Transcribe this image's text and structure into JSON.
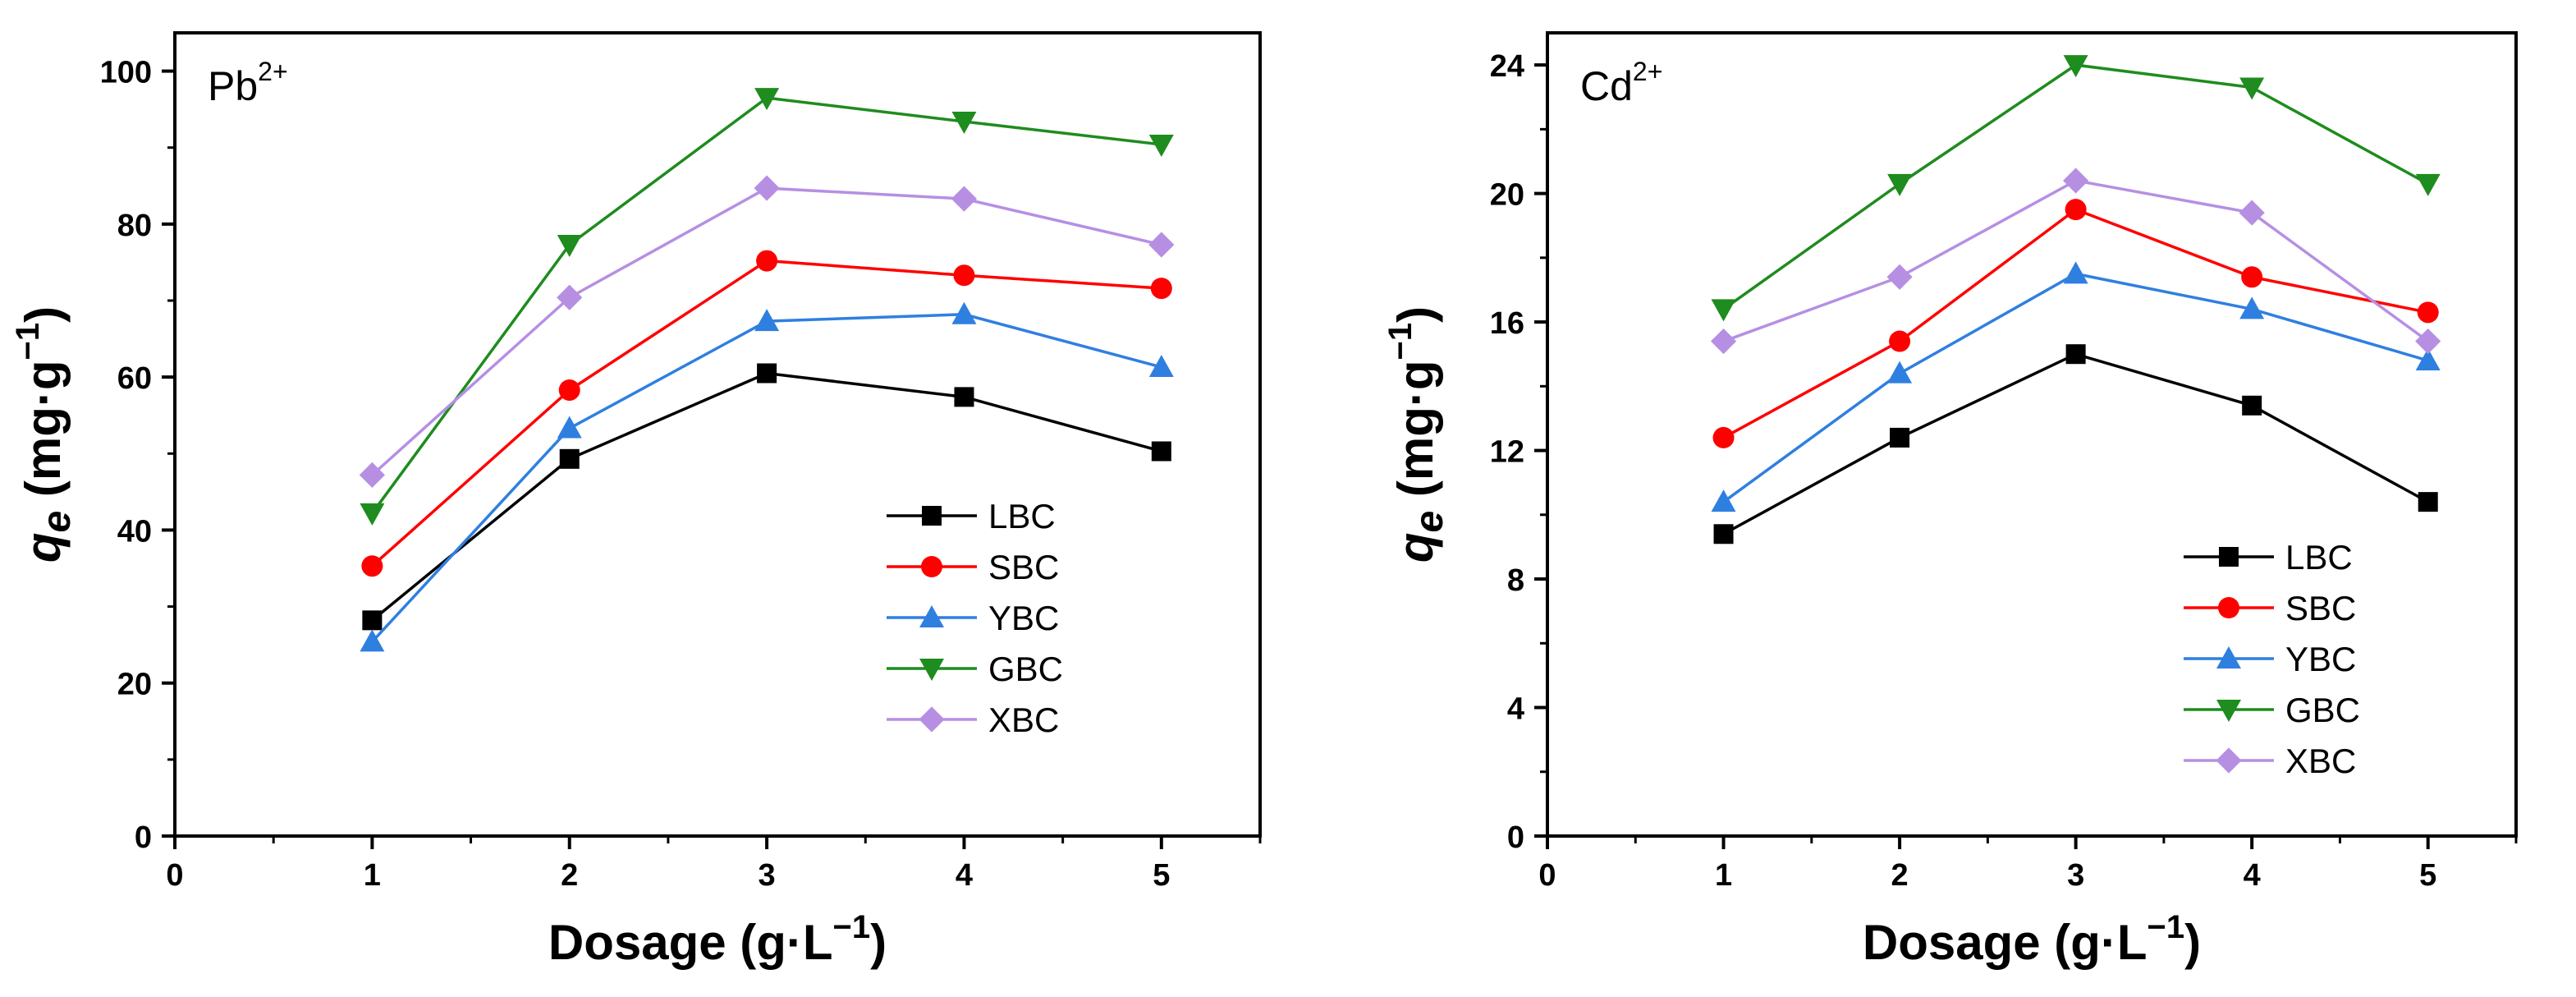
{
  "chart_data": [
    {
      "type": "line",
      "ion_base": "Pb",
      "ion_sup": "2+",
      "xlabel_main": "Dosage (g·L",
      "xlabel_sup": "−1",
      "xlabel_close": ")",
      "ylabel_var": "q",
      "ylabel_sub": "e",
      "ylabel_main": " (mg·g",
      "ylabel_sup": "−1",
      "ylabel_close": ")",
      "xlim": [
        0,
        5.5
      ],
      "ylim": [
        0,
        105
      ],
      "xticks": [
        0,
        1,
        2,
        3,
        4,
        5
      ],
      "yticks": [
        0,
        20,
        40,
        60,
        80,
        100
      ],
      "legend_position": "lower-right",
      "x": [
        1,
        2,
        3,
        4,
        5
      ],
      "series": [
        {
          "name": "LBC",
          "marker": "square",
          "color": "#000000",
          "values": [
            28.2,
            49.3,
            60.5,
            57.4,
            50.3
          ]
        },
        {
          "name": "SBC",
          "marker": "circle",
          "color": "#ff0000",
          "values": [
            35.3,
            58.3,
            75.2,
            73.3,
            71.6
          ]
        },
        {
          "name": "YBC",
          "marker": "triangle-up",
          "color": "#2f7fe0",
          "values": [
            25.4,
            53.3,
            67.3,
            68.2,
            61.3
          ]
        },
        {
          "name": "GBC",
          "marker": "triangle-down",
          "color": "#1e8c1e",
          "values": [
            42.2,
            77.3,
            96.5,
            93.4,
            90.4
          ]
        },
        {
          "name": "XBC",
          "marker": "diamond",
          "color": "#b68fe3",
          "values": [
            47.2,
            70.4,
            84.7,
            83.3,
            77.3
          ]
        }
      ]
    },
    {
      "type": "line",
      "ion_base": "Cd",
      "ion_sup": "2+",
      "xlabel_main": "Dosage (g·L",
      "xlabel_sup": "−1",
      "xlabel_close": ")",
      "ylabel_var": "q",
      "ylabel_sub": "e",
      "ylabel_main": " (mg·g",
      "ylabel_sup": "−1",
      "ylabel_close": ")",
      "xlim": [
        0,
        5.5
      ],
      "ylim": [
        0,
        25
      ],
      "xticks": [
        0,
        1,
        2,
        3,
        4,
        5
      ],
      "yticks": [
        0,
        4,
        8,
        12,
        16,
        20,
        24
      ],
      "legend_position": "lower-right",
      "x": [
        1,
        2,
        3,
        4,
        5
      ],
      "series": [
        {
          "name": "LBC",
          "marker": "square",
          "color": "#000000",
          "values": [
            9.4,
            12.4,
            15.0,
            13.4,
            10.4
          ]
        },
        {
          "name": "SBC",
          "marker": "circle",
          "color": "#ff0000",
          "values": [
            12.4,
            15.4,
            19.5,
            17.4,
            16.3
          ]
        },
        {
          "name": "YBC",
          "marker": "triangle-up",
          "color": "#2f7fe0",
          "values": [
            10.4,
            14.4,
            17.5,
            16.4,
            14.8
          ]
        },
        {
          "name": "GBC",
          "marker": "triangle-down",
          "color": "#1e8c1e",
          "values": [
            16.4,
            20.3,
            24.0,
            23.3,
            20.3
          ]
        },
        {
          "name": "XBC",
          "marker": "diamond",
          "color": "#b68fe3",
          "values": [
            15.4,
            17.4,
            20.4,
            19.4,
            15.4
          ]
        }
      ]
    }
  ]
}
